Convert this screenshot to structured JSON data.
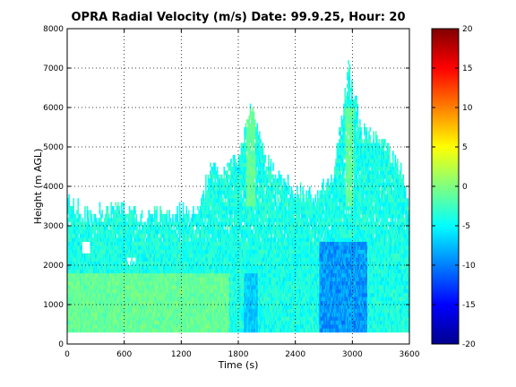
{
  "chart_data": {
    "type": "heatmap",
    "title": "OPRA Radial Velocity (m/s)  Date: 99.9.25, Hour: 20",
    "xlabel": "Time (s)",
    "ylabel": "Height (m AGL)",
    "xlim": [
      0,
      3600
    ],
    "ylim": [
      0,
      8000
    ],
    "xticks": [
      0,
      600,
      1200,
      1800,
      2400,
      3000,
      3600
    ],
    "yticks": [
      0,
      1000,
      2000,
      3000,
      4000,
      5000,
      6000,
      7000,
      8000
    ],
    "grid": true,
    "colorbar": {
      "min": -20,
      "max": 20,
      "ticks": [
        20,
        15,
        10,
        5,
        0,
        -5,
        -10,
        -15,
        -20
      ],
      "colormap": "jet"
    },
    "data_description": {
      "height_bottom_m": 300,
      "echo_top_profile": [
        {
          "time_s": 0,
          "height_m": 3600
        },
        {
          "time_s": 200,
          "height_m": 3200
        },
        {
          "time_s": 400,
          "height_m": 3300
        },
        {
          "time_s": 600,
          "height_m": 3400
        },
        {
          "time_s": 800,
          "height_m": 3200
        },
        {
          "time_s": 1000,
          "height_m": 3300
        },
        {
          "time_s": 1200,
          "height_m": 3300
        },
        {
          "time_s": 1400,
          "height_m": 3400
        },
        {
          "time_s": 1500,
          "height_m": 4400
        },
        {
          "time_s": 1650,
          "height_m": 4300
        },
        {
          "time_s": 1800,
          "height_m": 4600
        },
        {
          "time_s": 1940,
          "height_m": 6000
        },
        {
          "time_s": 2100,
          "height_m": 4600
        },
        {
          "time_s": 2400,
          "height_m": 3800
        },
        {
          "time_s": 2600,
          "height_m": 3700
        },
        {
          "time_s": 2800,
          "height_m": 4300
        },
        {
          "time_s": 2960,
          "height_m": 6900
        },
        {
          "time_s": 3100,
          "height_m": 5300
        },
        {
          "time_s": 3300,
          "height_m": 5100
        },
        {
          "time_s": 3500,
          "height_m": 4400
        },
        {
          "time_s": 3600,
          "height_m": 3500
        }
      ],
      "typical_velocity_ms": {
        "below_1800m_early": -1,
        "mid_levels": -4,
        "strong_core_2700_3100s": -9
      }
    }
  }
}
